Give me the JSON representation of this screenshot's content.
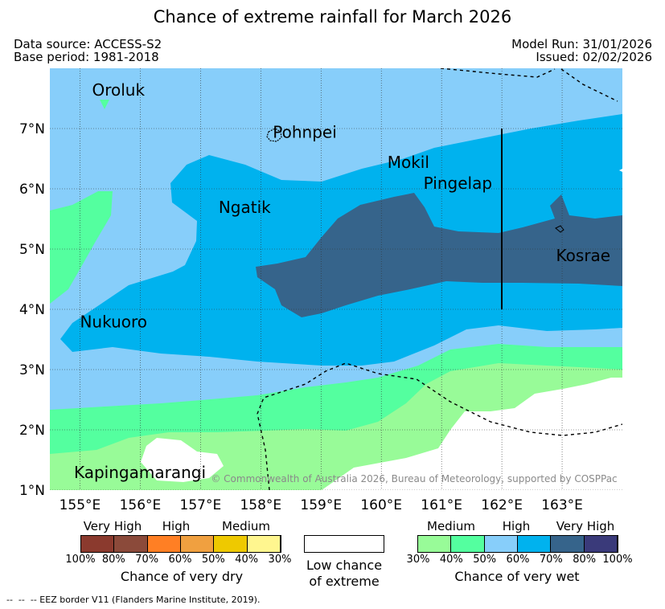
{
  "title": "Chance of extreme rainfall for March 2026",
  "meta": {
    "data_source": "Data source: ACCESS-S2",
    "base_period": "Base period: 1981-2018",
    "model_run": "Model Run: 31/01/2026",
    "issued": "Issued: 02/02/2026"
  },
  "map": {
    "lon_range": [
      154.5,
      164
    ],
    "lat_range": [
      1,
      8
    ],
    "lon_ticks": [
      "155°E",
      "156°E",
      "157°E",
      "158°E",
      "159°E",
      "160°E",
      "161°E",
      "162°E",
      "163°E"
    ],
    "lat_ticks": [
      "7°N",
      "6°N",
      "5°N",
      "4°N",
      "3°N",
      "2°N",
      "1°N"
    ],
    "places": [
      {
        "name": "Oroluk",
        "lon": 155.2,
        "lat": 7.55
      },
      {
        "name": "Pohnpei",
        "lon": 158.2,
        "lat": 6.85
      },
      {
        "name": "Mokil",
        "lon": 160.1,
        "lat": 6.35
      },
      {
        "name": "Pingelap",
        "lon": 160.7,
        "lat": 6.0
      },
      {
        "name": "Ngatik",
        "lon": 157.3,
        "lat": 5.6
      },
      {
        "name": "Kosrae",
        "lon": 162.9,
        "lat": 4.8
      },
      {
        "name": "Nukuoro",
        "lon": 155.0,
        "lat": 3.7
      },
      {
        "name": "Kapingamarangi",
        "lon": 154.9,
        "lat": 1.2
      }
    ],
    "copyright": "© Commonwealth of Australia 2026, Bureau of Meteorology, supported by COSPPac"
  },
  "legend": {
    "dry": {
      "categories": [
        "Very High",
        "High",
        "Medium"
      ],
      "colors": [
        "#8b3a2e",
        "#8b4a3a",
        "#ff7f24",
        "#f0a040",
        "#eec900",
        "#fff68f"
      ],
      "ticks": [
        "100%",
        "80%",
        "70%",
        "60%",
        "50%",
        "40%",
        "30%"
      ],
      "title": "Chance of very dry"
    },
    "low": {
      "line1": "Low chance",
      "line2": "of extreme",
      "color": "#ffffff"
    },
    "wet": {
      "categories": [
        "Medium",
        "High",
        "Very High"
      ],
      "colors": [
        "#98fb98",
        "#54ff9f",
        "#87cefa",
        "#00b2ee",
        "#36648b",
        "#3a3a7a"
      ],
      "ticks": [
        "30%",
        "40%",
        "50%",
        "60%",
        "70%",
        "80%",
        "100%"
      ],
      "title": "Chance of very wet"
    }
  },
  "footer": "--  --  -- EEZ border V11 (Flanders Marine Institute, 2019)."
}
